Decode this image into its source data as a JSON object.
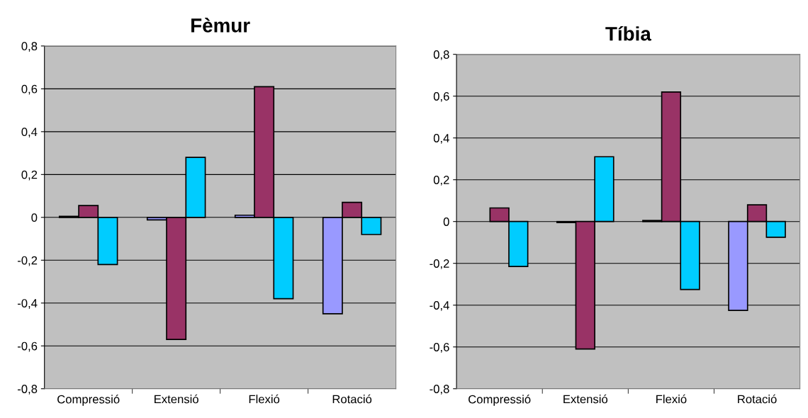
{
  "chart_data": [
    {
      "type": "bar",
      "title": "Fèmur",
      "categories": [
        "Compressió",
        "Extensió",
        "Flexió",
        "Rotació"
      ],
      "series": [
        {
          "color": "#9999ff",
          "values": [
            0.005,
            -0.012,
            0.01,
            -0.45
          ]
        },
        {
          "color": "#993366",
          "values": [
            0.055,
            -0.57,
            0.61,
            0.07
          ]
        },
        {
          "color": "#00ccff",
          "values": [
            -0.22,
            0.28,
            -0.38,
            -0.08
          ]
        }
      ],
      "ylim": [
        -0.8,
        0.8
      ],
      "yticks": [
        {
          "value": -0.8,
          "label": "-0,8"
        },
        {
          "value": -0.6,
          "label": "-0,6"
        },
        {
          "value": -0.4,
          "label": "-0,4"
        },
        {
          "value": -0.2,
          "label": "-0,2"
        },
        {
          "value": 0,
          "label": "0"
        },
        {
          "value": 0.2,
          "label": "0,2"
        },
        {
          "value": 0.4,
          "label": "0,4"
        },
        {
          "value": 0.6,
          "label": "0,6"
        },
        {
          "value": 0.8,
          "label": "0,8"
        }
      ],
      "grid": "y",
      "legend": false
    },
    {
      "type": "bar",
      "title": "Tíbia",
      "categories": [
        "Compressió",
        "Extensió",
        "Flexió",
        "Rotació"
      ],
      "series": [
        {
          "color": "#9999ff",
          "values": [
            null,
            -0.005,
            0.005,
            -0.425
          ]
        },
        {
          "color": "#993366",
          "values": [
            0.065,
            -0.61,
            0.62,
            0.08
          ]
        },
        {
          "color": "#00ccff",
          "values": [
            -0.215,
            0.31,
            -0.325,
            -0.075
          ]
        }
      ],
      "ylim": [
        -0.8,
        0.8
      ],
      "yticks": [
        {
          "value": -0.8,
          "label": "-0,8"
        },
        {
          "value": -0.6,
          "label": "-0,6"
        },
        {
          "value": -0.4,
          "label": "-0,4"
        },
        {
          "value": -0.2,
          "label": "-0,2"
        },
        {
          "value": 0,
          "label": "0"
        },
        {
          "value": 0.2,
          "label": "0,2"
        },
        {
          "value": 0.4,
          "label": "0,4"
        },
        {
          "value": 0.6,
          "label": "0,6"
        },
        {
          "value": 0.8,
          "label": "0,8"
        }
      ],
      "grid": "y",
      "legend": false
    }
  ]
}
